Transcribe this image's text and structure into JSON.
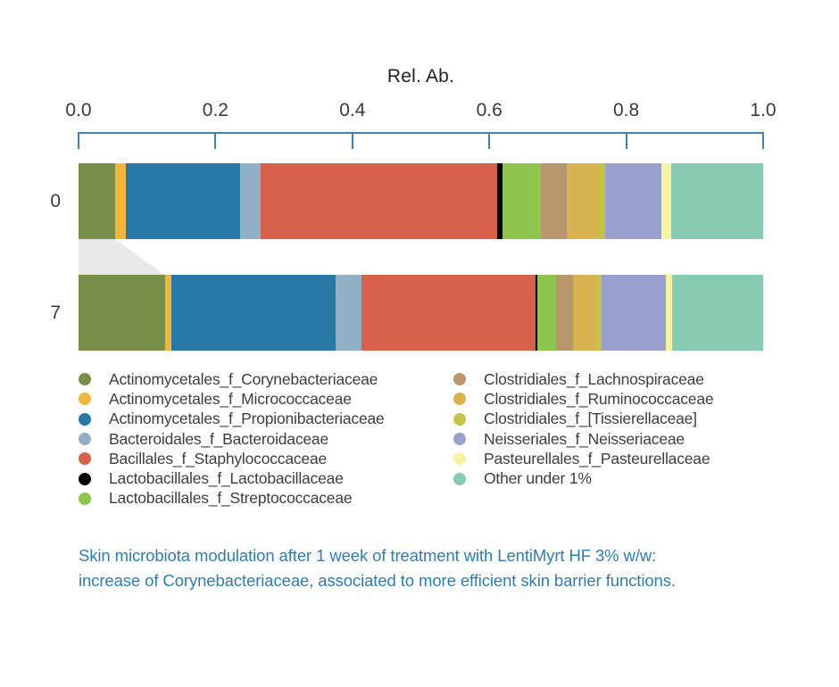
{
  "figure": {
    "background": "#ffffff",
    "title": "Rel. Ab."
  },
  "axis": {
    "label": "Rel. Ab.",
    "tick_labels": [
      "0.0",
      "0.2",
      "0.4",
      "0.6",
      "0.8",
      "1.0"
    ],
    "line_color": "#4381B0",
    "text_color": "#3a3a3a"
  },
  "rows": {
    "labels": [
      "0",
      "7"
    ]
  },
  "connector": {
    "color": "#e8e8e8",
    "taxon_index": 0,
    "description": "gray band linking Corynebacteriaceae segment from day 0 to day 7"
  },
  "legend": {
    "left_column_indices": [
      0,
      1,
      2,
      3,
      4,
      5,
      6
    ],
    "right_column_indices": [
      7,
      8,
      9,
      10,
      11,
      12
    ]
  },
  "caption": {
    "color": "#2E7CB0",
    "line1": "Skin microbiota modulation after 1 week of treatment with LentiMyrt HF 3% w/w:",
    "line2": "increase of Corynebacteriaceae, associated to more efficient skin barrier functions."
  },
  "chart_data": {
    "type": "bar",
    "variant": "stacked-horizontal",
    "title": "Rel. Ab.",
    "xlabel": "Rel. Ab.",
    "ylabel": "",
    "xlim": [
      0,
      1
    ],
    "x_ticks": [
      0.0,
      0.2,
      0.4,
      0.6,
      0.8,
      1.0
    ],
    "categories": [
      "0",
      "7"
    ],
    "grid": false,
    "legend_position": "bottom-two-columns",
    "series": [
      {
        "name": "Actinomycetales_f_Corynebacteriaceae",
        "color": "#788F4A",
        "values": [
          0.053,
          0.126
        ]
      },
      {
        "name": "Actinomycetales_f_Micrococcaceae",
        "color": "#EFB73F",
        "values": [
          0.016,
          0.009
        ]
      },
      {
        "name": "Actinomycetales_f_Propionibacteriaceae",
        "color": "#2878A8",
        "values": [
          0.167,
          0.241
        ]
      },
      {
        "name": "Bacteroidales_f_Bacteroidaceae",
        "color": "#92B0C3",
        "values": [
          0.03,
          0.037
        ]
      },
      {
        "name": "Bacillales_f_Staphylococcaceae",
        "color": "#D7614A",
        "values": [
          0.346,
          0.254
        ]
      },
      {
        "name": "Lactobacillales_f_Lactobacillaceae",
        "color": "#000000",
        "values": [
          0.008,
          0.003
        ]
      },
      {
        "name": "Lactobacillales_f_Streptococcaceae",
        "color": "#8EC54E",
        "values": [
          0.056,
          0.027
        ]
      },
      {
        "name": "Clostridiales_f_Lachnospiraceae",
        "color": "#B7976B",
        "values": [
          0.037,
          0.025
        ]
      },
      {
        "name": "Clostridiales_f_Ruminococcaceae",
        "color": "#D9B252",
        "values": [
          0.047,
          0.034
        ]
      },
      {
        "name": "Clostridiales_f_[Tissierellaceae]",
        "color": "#C5C44A",
        "values": [
          0.009,
          0.008
        ]
      },
      {
        "name": "Neisseriales_f_Neisseriaceae",
        "color": "#99A0CE",
        "values": [
          0.083,
          0.094
        ]
      },
      {
        "name": "Pasteurellales_f_Pasteurellaceae",
        "color": "#F8F2A3",
        "values": [
          0.014,
          0.009
        ]
      },
      {
        "name": "Other under 1%",
        "color": "#87CBB2",
        "values": [
          0.134,
          0.133
        ]
      }
    ],
    "annotations": [
      "light gray connector band between bars showing growth of Corynebacteriaceae from day 0 to day 7"
    ]
  }
}
